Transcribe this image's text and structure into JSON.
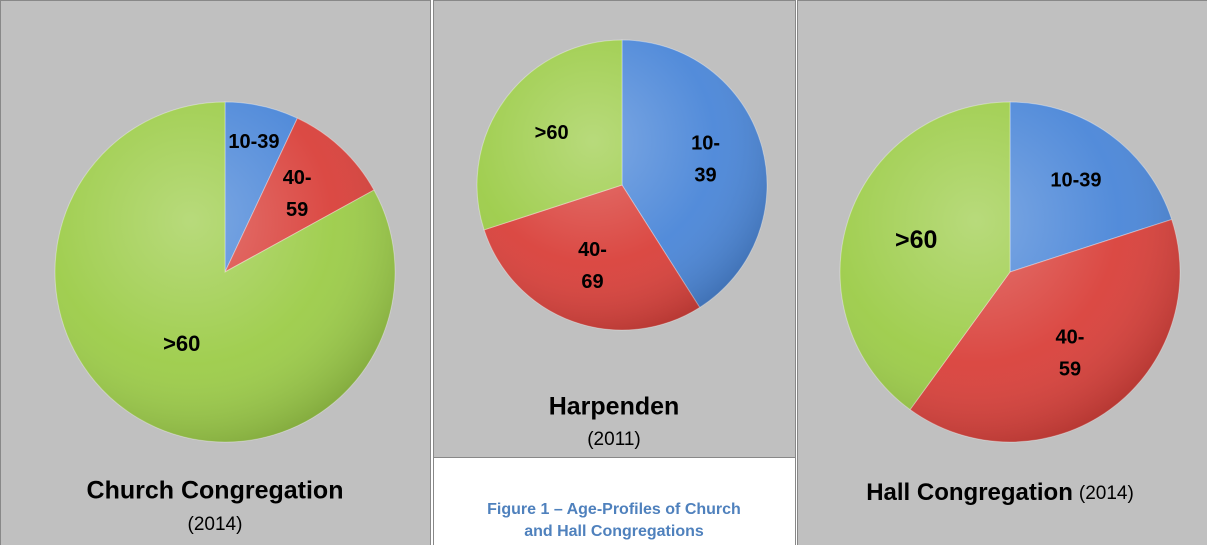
{
  "chart_data": [
    {
      "type": "pie",
      "title": "Church Congregation",
      "subtitle": "(2014)",
      "categories": [
        "10-39",
        "40-59",
        ">60"
      ],
      "values": [
        7,
        10,
        83
      ],
      "colors": [
        "#4a86d8",
        "#d9403a",
        "#9ccc48"
      ]
    },
    {
      "type": "pie",
      "title": "Harpenden",
      "subtitle": "(2011)",
      "categories": [
        "10-39",
        "40-69",
        ">60"
      ],
      "values": [
        41,
        29,
        30
      ],
      "colors": [
        "#4a86d8",
        "#d9403a",
        "#9ccc48"
      ]
    },
    {
      "type": "pie",
      "title": "Hall Congregation",
      "subtitle": "(2014)",
      "categories": [
        "10-39",
        "40-59",
        ">60"
      ],
      "values": [
        20,
        40,
        40
      ],
      "colors": [
        "#4a86d8",
        "#d9403a",
        "#9ccc48"
      ]
    }
  ],
  "caption": "Figure 1 – Age-Profiles of Church and Hall Congregations"
}
